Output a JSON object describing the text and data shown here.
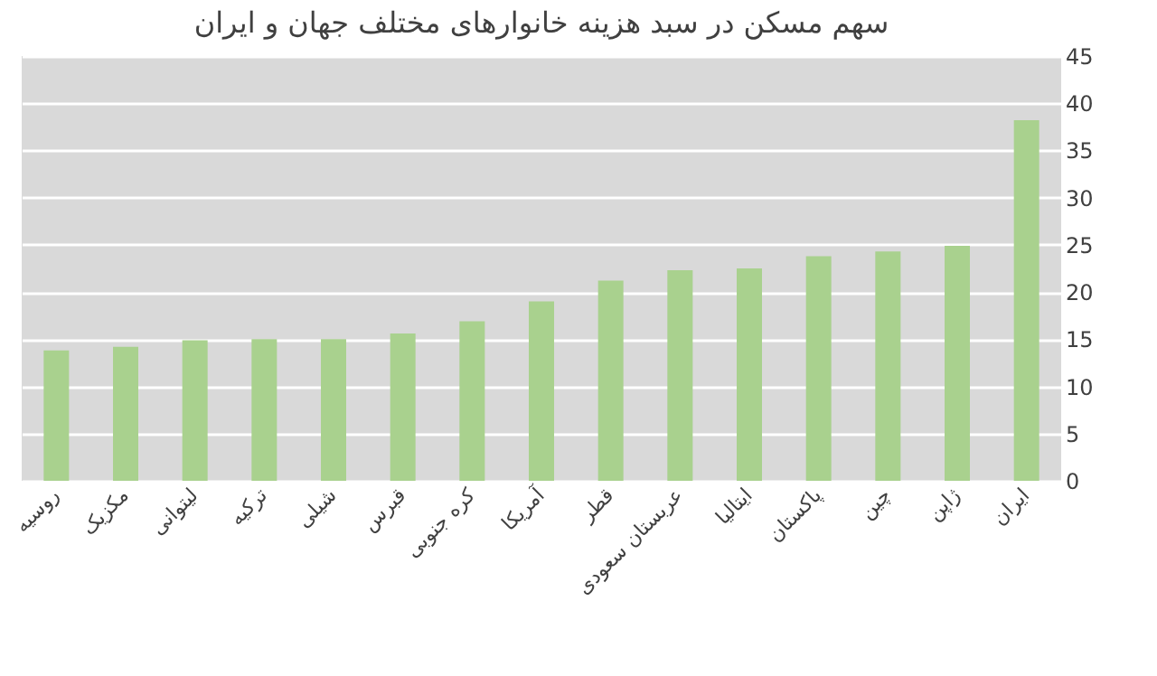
{
  "chart_data": {
    "type": "bar",
    "title": "سهم مسکن در سبد هزینه خانوارهای مختلف جهان و ایران",
    "categories": [
      "روسیه",
      "مکزیک",
      "لیتوانی",
      "ترکیه",
      "شیلی",
      "قبرس",
      "کره جنوبی",
      "آمریکا",
      "قطر",
      "عربستان سعودی",
      "ایتالیا",
      "پاکستان",
      "چین",
      "ژاپن",
      "ایران"
    ],
    "values": [
      13.8,
      14.2,
      14.9,
      15.0,
      15.0,
      15.6,
      16.9,
      19.0,
      21.2,
      22.3,
      22.5,
      23.8,
      24.3,
      24.9,
      38.2
    ],
    "color": "#a9d18e",
    "ylim": [
      0,
      45
    ],
    "yticks": [
      0,
      5,
      10,
      15,
      20,
      25,
      30,
      35,
      40,
      45
    ],
    "grid": "y"
  }
}
